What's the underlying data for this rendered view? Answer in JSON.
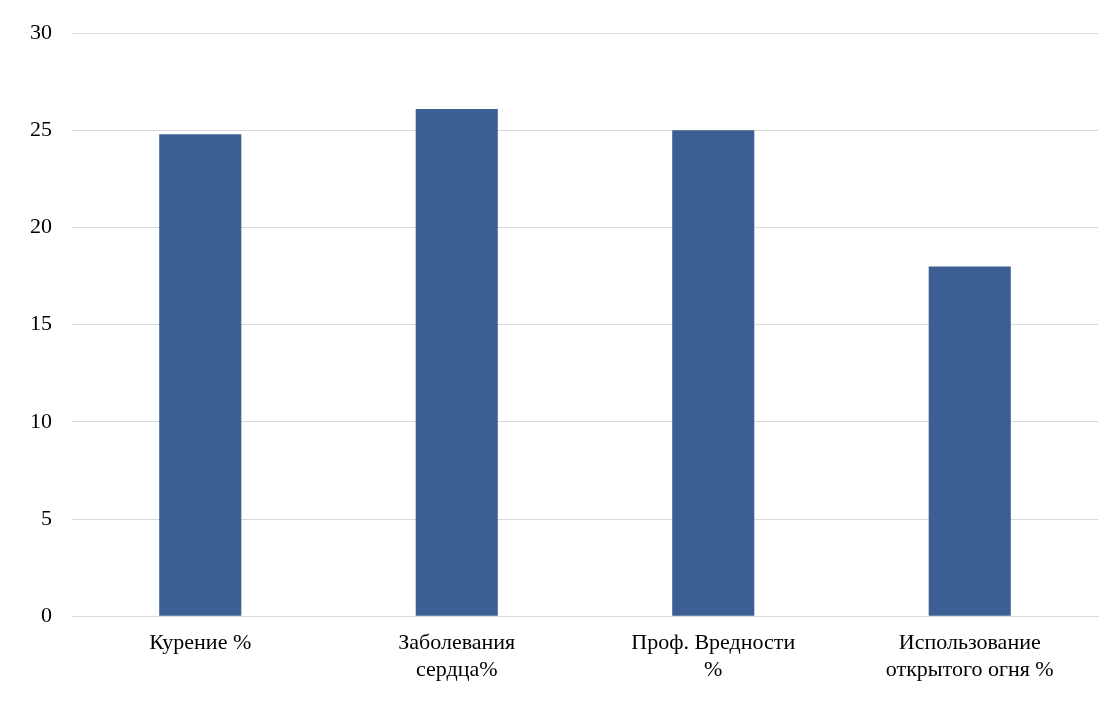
{
  "chart_data": {
    "type": "bar",
    "categories": [
      "Курение %",
      "Заболевания сердца%",
      "Проф. Вредности %",
      "Использование открытого огня %"
    ],
    "values": [
      24.8,
      26.1,
      25,
      18
    ],
    "color": "#3b5f92",
    "ylim": [
      0,
      30
    ],
    "yticks": [
      0,
      5,
      10,
      15,
      20,
      25,
      30
    ],
    "grid": "y",
    "legend": false
  }
}
